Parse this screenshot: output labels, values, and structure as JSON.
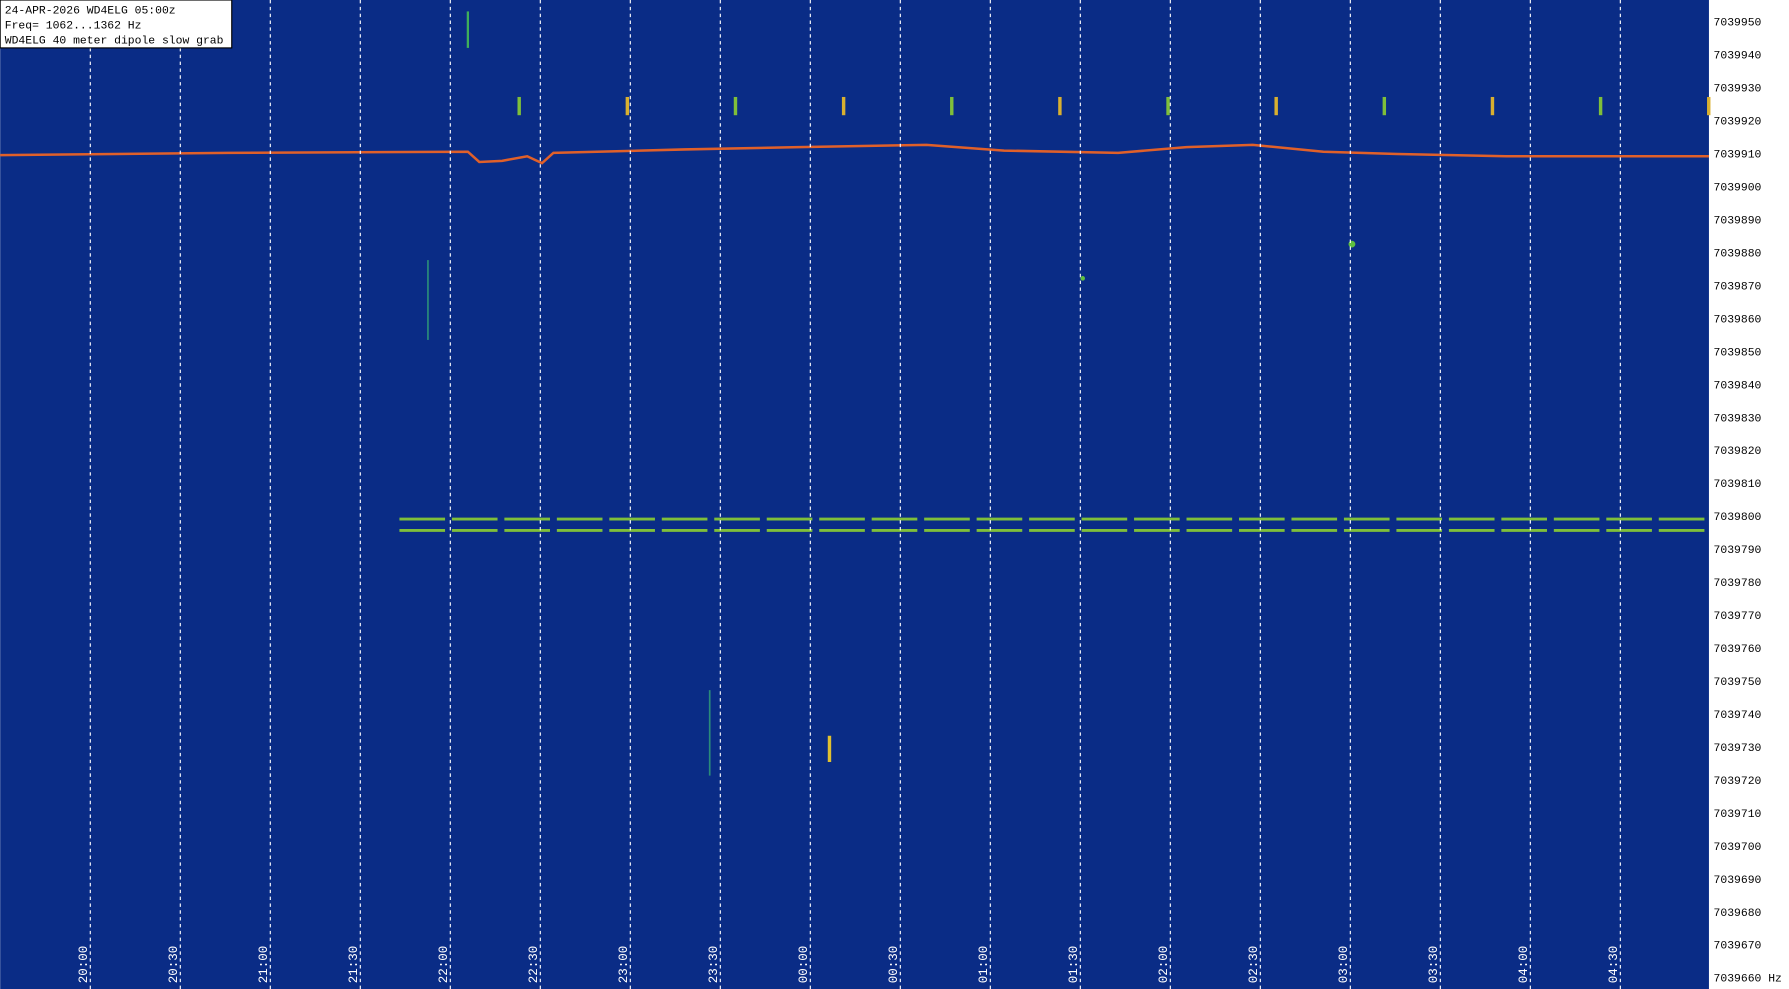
{
  "header": {
    "lines": [
      "24-APR-2026  WD4ELG  05:00z",
      "Freq= 1062...1362 Hz",
      "WD4ELG 40 meter dipole slow grab"
    ]
  },
  "time_labels": [
    "20:00",
    "20:30",
    "21:00",
    "21:30",
    "22:00",
    "22:30",
    "23:00",
    "23:30",
    "00:00",
    "00:30",
    "01:00",
    "01:30",
    "02:00",
    "02:30",
    "03:00",
    "03:30",
    "04:00",
    "04:30"
  ],
  "freq_labels": [
    "7039950",
    "7039940",
    "7039930",
    "7039920",
    "7039910",
    "7039900",
    "7039890",
    "7039880",
    "7039870",
    "7039860",
    "7039850",
    "7039840",
    "7039830",
    "7039820",
    "7039810",
    "7039800",
    "7039790",
    "7039780",
    "7039770",
    "7039760",
    "7039750",
    "7039740",
    "7039730",
    "7039720",
    "7039710",
    "7039700",
    "7039690",
    "7039680",
    "7039670",
    "7039660 Hz"
  ]
}
